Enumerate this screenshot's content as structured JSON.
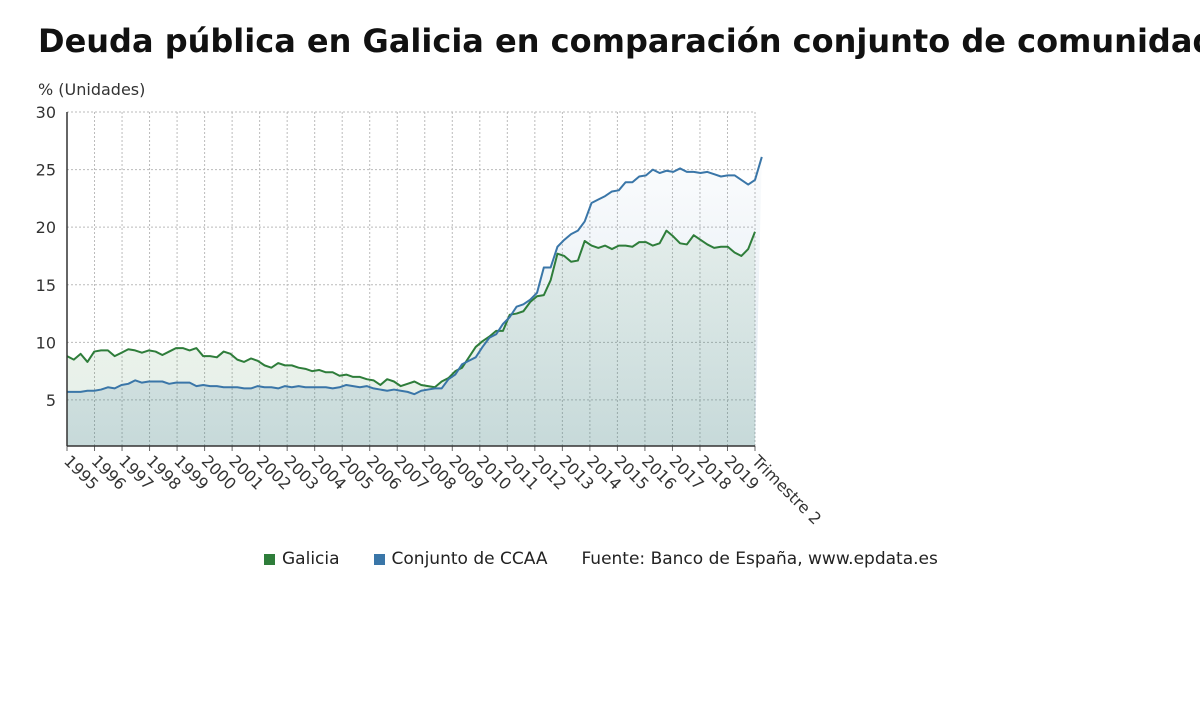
{
  "chart_data": {
    "type": "line",
    "title": "Deuda pública en Galicia en comparación conjunto de comunidades",
    "ylabel": "% (Unidades)",
    "ylim": [
      1,
      30
    ],
    "yticks": [
      5,
      10,
      15,
      20,
      25,
      30
    ],
    "x_tick_labels": [
      "1995",
      "1996",
      "1997",
      "1998",
      "1999",
      "2000",
      "2001",
      "2002",
      "2003",
      "2004",
      "2005",
      "2006",
      "2007",
      "2008",
      "2009",
      "2010",
      "2011",
      "2012",
      "2013",
      "2014",
      "2015",
      "2016",
      "2017",
      "2018",
      "2019",
      "Trimestre 2"
    ],
    "grid": true,
    "legend_position": "bottom",
    "series": [
      {
        "name": "Galicia",
        "color": "#2e7d3a",
        "values": [
          8.8,
          8.5,
          9.0,
          8.3,
          9.2,
          9.3,
          9.3,
          8.8,
          9.1,
          9.4,
          9.3,
          9.1,
          9.3,
          9.2,
          8.9,
          9.2,
          9.5,
          9.5,
          9.3,
          9.5,
          8.8,
          8.8,
          8.7,
          9.2,
          9.0,
          8.5,
          8.3,
          8.6,
          8.4,
          8.0,
          7.8,
          8.2,
          8.0,
          8.0,
          7.8,
          7.7,
          7.5,
          7.6,
          7.4,
          7.4,
          7.1,
          7.2,
          7.0,
          7.0,
          6.8,
          6.7,
          6.3,
          6.8,
          6.6,
          6.2,
          6.4,
          6.6,
          6.3,
          6.2,
          6.1,
          6.6,
          6.9,
          7.5,
          7.8,
          8.7,
          9.6,
          10.1,
          10.5,
          11.0,
          11.0,
          12.4,
          12.5,
          12.7,
          13.5,
          14.0,
          14.1,
          15.4,
          17.7,
          17.5,
          17.0,
          17.1,
          18.8,
          18.4,
          18.2,
          18.4,
          18.1,
          18.4,
          18.4,
          18.3,
          18.7,
          18.7,
          18.4,
          18.6,
          19.7,
          19.2,
          18.6,
          18.5,
          19.3,
          18.9,
          18.5,
          18.2,
          18.3,
          18.3,
          17.8,
          17.5,
          18.1,
          19.6
        ]
      },
      {
        "name": "Conjunto de CCAA",
        "color": "#3a76a8",
        "values": [
          5.7,
          5.7,
          5.7,
          5.8,
          5.8,
          5.9,
          6.1,
          6.0,
          6.3,
          6.4,
          6.7,
          6.5,
          6.6,
          6.6,
          6.6,
          6.4,
          6.5,
          6.5,
          6.5,
          6.2,
          6.3,
          6.2,
          6.2,
          6.1,
          6.1,
          6.1,
          6.0,
          6.0,
          6.2,
          6.1,
          6.1,
          6.0,
          6.2,
          6.1,
          6.2,
          6.1,
          6.1,
          6.1,
          6.1,
          6.0,
          6.1,
          6.3,
          6.2,
          6.1,
          6.2,
          6.0,
          5.9,
          5.8,
          5.9,
          5.8,
          5.7,
          5.5,
          5.8,
          5.9,
          6.0,
          6.0,
          6.8,
          7.2,
          8.1,
          8.4,
          8.7,
          9.6,
          10.4,
          10.7,
          11.6,
          12.2,
          13.1,
          13.3,
          13.7,
          14.3,
          16.5,
          16.5,
          18.3,
          18.9,
          19.4,
          19.7,
          20.5,
          22.1,
          22.4,
          22.7,
          23.1,
          23.2,
          23.9,
          23.9,
          24.4,
          24.5,
          25.0,
          24.7,
          24.9,
          24.8,
          25.1,
          24.8,
          24.8,
          24.7,
          24.8,
          24.6,
          24.4,
          24.5,
          24.5,
          24.1,
          23.7,
          24.1,
          26.1
        ]
      }
    ]
  },
  "legend": {
    "galicia": "Galicia",
    "ccaa": "Conjunto de CCAA",
    "source": "Fuente: Banco de España, www.epdata.es"
  }
}
